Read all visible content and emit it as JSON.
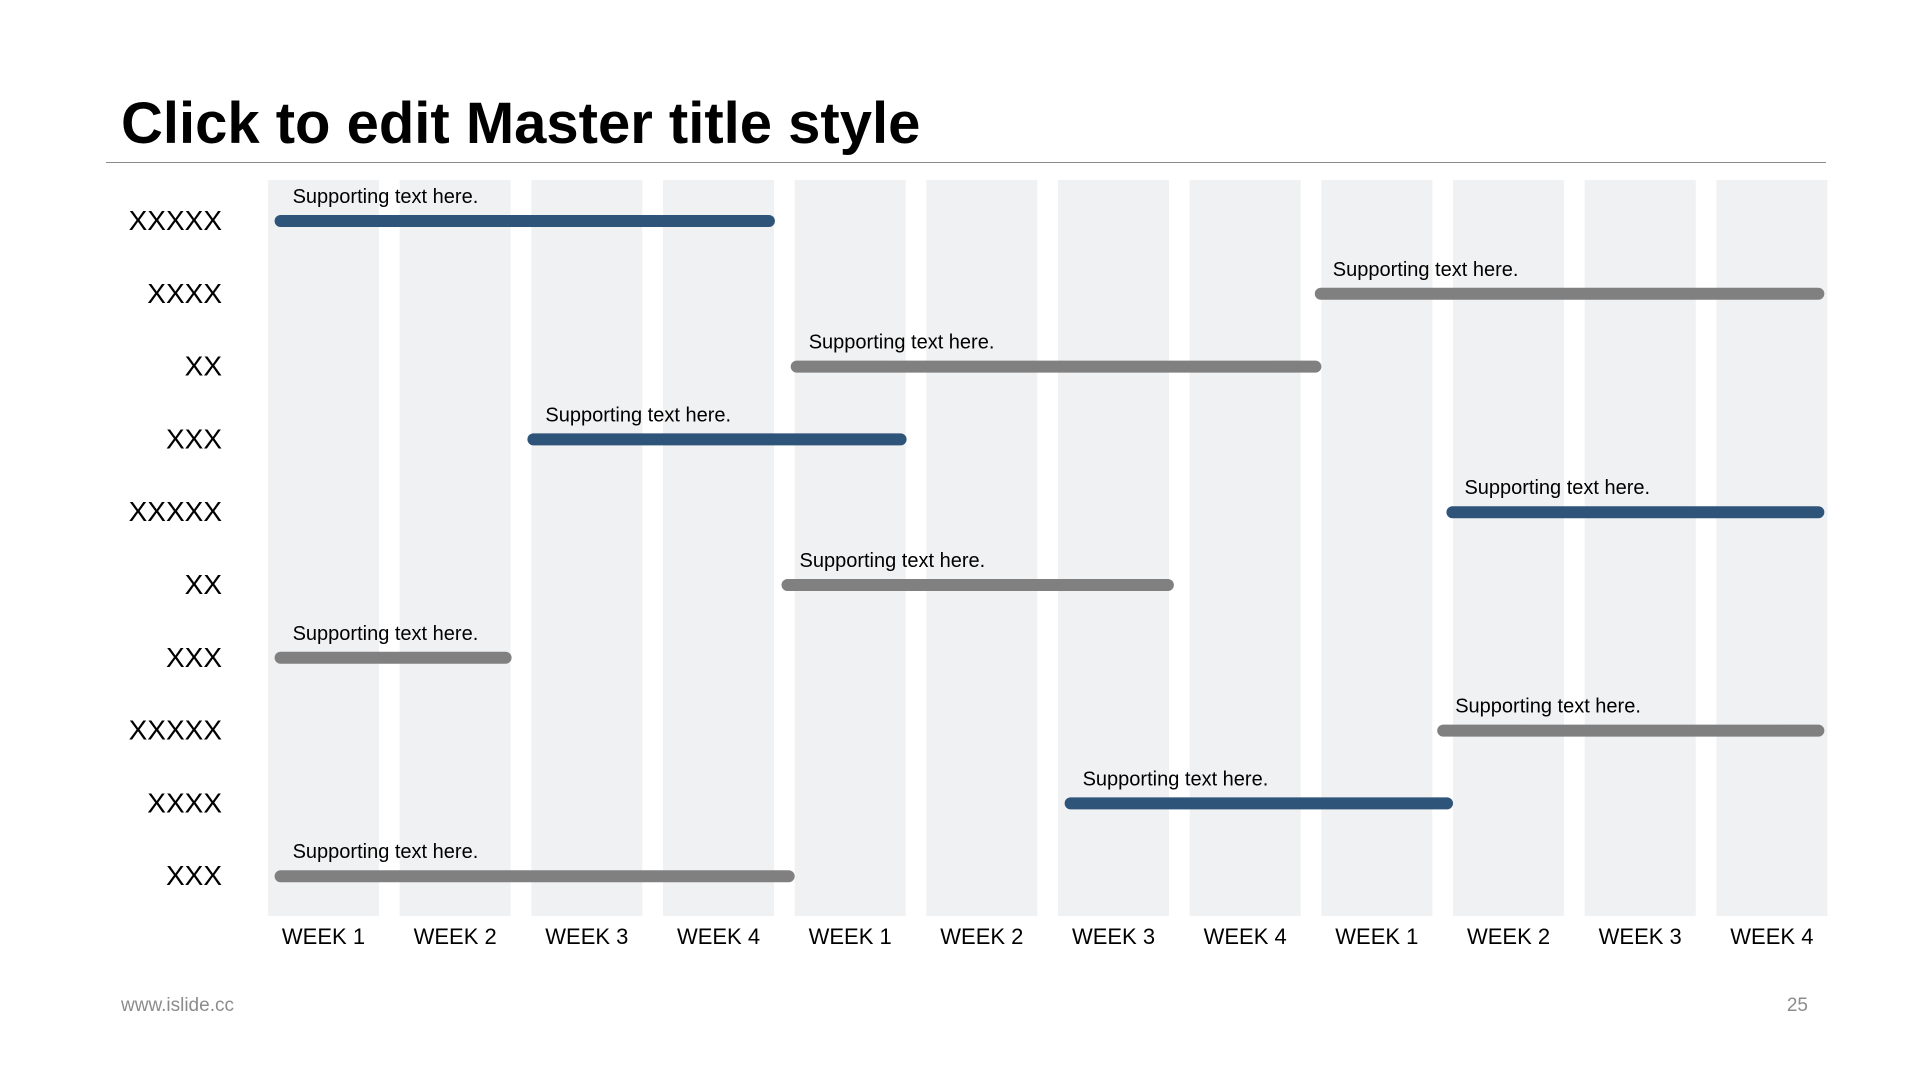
{
  "slide": {
    "title": "Click to edit Master title style",
    "footer_url": "www.islide.cc",
    "page_number": "25"
  },
  "colors": {
    "column_fill": "#f0f1f2",
    "accent_blue": "#2f5479",
    "neutral_gray": "#808080",
    "title_rule": "#8a8a8a",
    "footer_text": "#8c8c8c"
  },
  "chart_data": {
    "type": "gantt",
    "title": "",
    "xlabel": "",
    "ylabel": "",
    "x_categories": [
      "WEEK 1",
      "WEEK 2",
      "WEEK 3",
      "WEEK 4",
      "WEEK 1",
      "WEEK 2",
      "WEEK 3",
      "WEEK 4",
      "WEEK 1",
      "WEEK 2",
      "WEEK 3",
      "WEEK 4"
    ],
    "xlim": [
      0,
      12
    ],
    "rows": [
      {
        "label": "XXXXX",
        "start": 0.05,
        "end": 3.85,
        "color": "#2f5479",
        "text": "Supporting text here."
      },
      {
        "label": "XXXX",
        "start": 7.95,
        "end": 11.82,
        "color": "#808080",
        "text": "Supporting text here."
      },
      {
        "label": "XX",
        "start": 3.97,
        "end": 8.0,
        "color": "#808080",
        "text": "Supporting text here."
      },
      {
        "label": "XXX",
        "start": 1.97,
        "end": 4.85,
        "color": "#2f5479",
        "text": "Supporting text here."
      },
      {
        "label": "XXXXX",
        "start": 8.95,
        "end": 11.82,
        "color": "#2f5479",
        "text": "Supporting text here."
      },
      {
        "label": "XX",
        "start": 3.9,
        "end": 6.88,
        "color": "#808080",
        "text": "Supporting text here."
      },
      {
        "label": "XXX",
        "start": 0.05,
        "end": 1.85,
        "color": "#808080",
        "text": "Supporting text here."
      },
      {
        "label": "XXXXX",
        "start": 8.88,
        "end": 11.82,
        "color": "#808080",
        "text": "Supporting text here."
      },
      {
        "label": "XXXX",
        "start": 6.05,
        "end": 9.0,
        "color": "#2f5479",
        "text": "Supporting text here."
      },
      {
        "label": "XXX",
        "start": 0.05,
        "end": 4.0,
        "color": "#808080",
        "text": "Supporting text here."
      }
    ]
  }
}
